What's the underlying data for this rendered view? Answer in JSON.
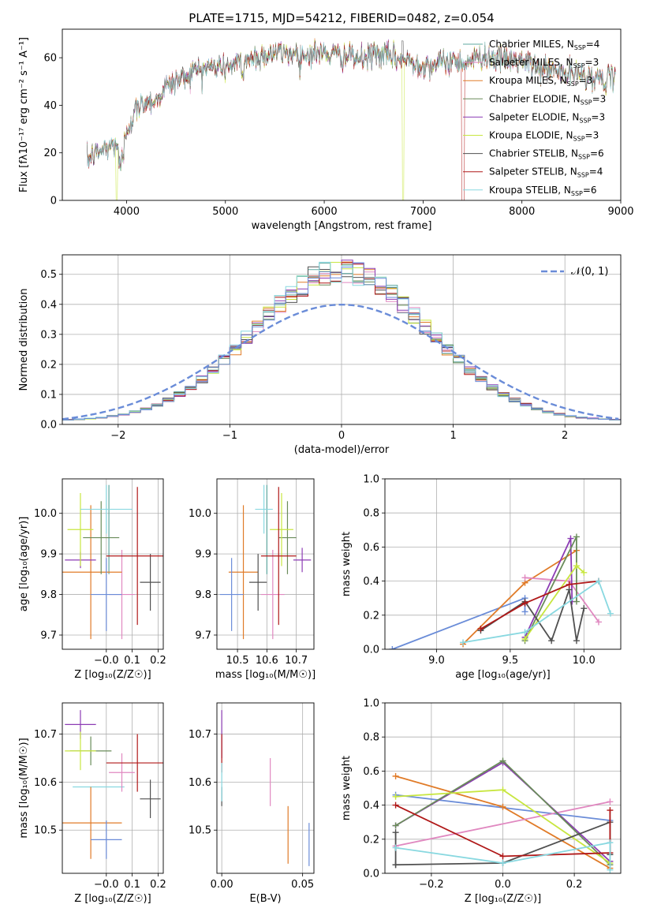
{
  "colors": {
    "chabrier_miles": "#5fa8a0",
    "salpeter_miles": "#e088c0",
    "kroupa_miles": "#e07b28",
    "chabrier_elodie": "#6a8c5a",
    "salpeter_elodie": "#8c3cb4",
    "kroupa_elodie": "#c8e640",
    "chabrier_stelib": "#505050",
    "salpeter_stelib": "#b01818",
    "kroupa_stelib": "#88d8e0",
    "gauss": "#6a8cd8",
    "blue": "#6a8cd8",
    "grid": "#b0b0b0"
  },
  "chart_data": [
    {
      "id": "spectrum",
      "type": "line",
      "title": "PLATE=1715, MJD=54212, FIBERID=0482, z=0.054",
      "xlabel": "wavelength [Angstrom, rest frame]",
      "ylabel": "Flux [fλ10⁻¹⁷ erg cm⁻² s⁻¹ A⁻¹]",
      "xlim": [
        3350,
        9000
      ],
      "ylim": [
        0,
        72
      ],
      "xticks": [
        "4000",
        "5000",
        "6000",
        "7000",
        "8000",
        "9000"
      ],
      "yticks": [
        "0",
        "20",
        "40",
        "60"
      ],
      "legend": "top-right",
      "series": [
        {
          "name": "Chabrier MILES, N",
          "sub": "SSP",
          "suffix": "=4"
        },
        {
          "name": "Salpeter MILES, N",
          "sub": "SSP",
          "suffix": "=3"
        },
        {
          "name": "Kroupa MILES, N",
          "sub": "SSP",
          "suffix": "=3"
        },
        {
          "name": "Chabrier ELODIE, N",
          "sub": "SSP",
          "suffix": "=3"
        },
        {
          "name": "Salpeter ELODIE, N",
          "sub": "SSP",
          "suffix": "=3"
        },
        {
          "name": "Kroupa ELODIE, N",
          "sub": "SSP",
          "suffix": "=3"
        },
        {
          "name": "Chabrier STELIB, N",
          "sub": "SSP",
          "suffix": "=6"
        },
        {
          "name": "Salpeter STELIB, N",
          "sub": "SSP",
          "suffix": "=4"
        },
        {
          "name": "Kroupa STELIB, N",
          "sub": "SSP",
          "suffix": "=6"
        }
      ],
      "continuum": [
        [
          3600,
          17
        ],
        [
          3700,
          20
        ],
        [
          3800,
          22
        ],
        [
          3900,
          24
        ],
        [
          3950,
          18
        ],
        [
          4000,
          30
        ],
        [
          4100,
          38
        ],
        [
          4200,
          42
        ],
        [
          4300,
          42
        ],
        [
          4400,
          48
        ],
        [
          4500,
          50
        ],
        [
          4600,
          52
        ],
        [
          4700,
          55
        ],
        [
          4800,
          56
        ],
        [
          4900,
          56
        ],
        [
          5000,
          56
        ],
        [
          5100,
          57
        ],
        [
          5200,
          59
        ],
        [
          5300,
          60
        ],
        [
          5400,
          61
        ],
        [
          5500,
          62
        ],
        [
          5600,
          62
        ],
        [
          5700,
          62
        ],
        [
          5800,
          61
        ],
        [
          5900,
          62
        ],
        [
          6000,
          62
        ],
        [
          6100,
          61
        ],
        [
          6200,
          61
        ],
        [
          6300,
          60
        ],
        [
          6400,
          59
        ],
        [
          6500,
          62
        ],
        [
          6600,
          61
        ],
        [
          6700,
          60
        ],
        [
          6800,
          59
        ],
        [
          6900,
          58
        ],
        [
          7000,
          57
        ],
        [
          7100,
          57
        ],
        [
          7200,
          58
        ],
        [
          7300,
          59
        ],
        [
          7400,
          58
        ],
        [
          7500,
          59
        ],
        [
          7600,
          61
        ],
        [
          7700,
          60
        ],
        [
          7800,
          59
        ],
        [
          7900,
          59
        ],
        [
          8000,
          58
        ],
        [
          8100,
          57
        ],
        [
          8200,
          55
        ],
        [
          8300,
          55
        ],
        [
          8400,
          54
        ],
        [
          8500,
          53
        ],
        [
          8600,
          53
        ],
        [
          8700,
          52
        ],
        [
          8800,
          51
        ],
        [
          8900,
          51
        ]
      ]
    },
    {
      "id": "residuals",
      "type": "histogram",
      "xlabel": "(data-model)/error",
      "ylabel": "Normed distribution",
      "xlim": [
        -2.5,
        2.5
      ],
      "ylim": [
        0,
        0.565
      ],
      "xticks": [
        "−2",
        "−1",
        "0",
        "1",
        "2"
      ],
      "yticks": [
        "0.0",
        "0.1",
        "0.2",
        "0.3",
        "0.4",
        "0.5"
      ],
      "legend_label": "𝒩(0, 1)",
      "bin_width": 0.1
    },
    {
      "id": "z_age",
      "type": "scatter",
      "xlabel": "Z [log₁₀(Z/Z☉)]",
      "ylabel": "age  [log₁₀(age/yr)]",
      "xlim": [
        -0.17,
        0.22
      ],
      "ylim": [
        9.665,
        10.085
      ],
      "xticks": [
        "−0.0",
        "0.1",
        "0.2"
      ],
      "yticks": [
        "9.7",
        "9.8",
        "9.9",
        "10.0"
      ],
      "points": [
        {
          "c": "chabrier_miles",
          "x": 0.01,
          "y": 9.96,
          "ex": 0.0,
          "ey": 0.11
        },
        {
          "c": "salpeter_miles",
          "x": 0.06,
          "y": 9.8,
          "ex": 0.05,
          "ey": 0.11
        },
        {
          "c": "kroupa_miles",
          "x": -0.06,
          "y": 9.855,
          "ex": 0.12,
          "ey": 0.165
        },
        {
          "c": "chabrier_elodie",
          "x": -0.02,
          "y": 9.94,
          "ex": 0.07,
          "ey": 0.09
        },
        {
          "c": "salpeter_elodie",
          "x": -0.1,
          "y": 9.885,
          "ex": 0.06,
          "ey": 0.02
        },
        {
          "c": "kroupa_elodie",
          "x": -0.1,
          "y": 9.96,
          "ex": 0.05,
          "ey": 0.09
        },
        {
          "c": "chabrier_stelib",
          "x": 0.17,
          "y": 9.83,
          "ex": 0.04,
          "ey": 0.07
        },
        {
          "c": "salpeter_stelib",
          "x": 0.12,
          "y": 9.895,
          "ex": 0.12,
          "ey": 0.17
        },
        {
          "c": "kroupa_stelib",
          "x": 0.0,
          "y": 10.01,
          "ex": 0.1,
          "ey": 0.06
        },
        {
          "c": "blue",
          "x": 0.0,
          "y": 9.8,
          "ex": 0.06,
          "ey": 0.09
        }
      ]
    },
    {
      "id": "mass_age",
      "type": "scatter",
      "xlabel": "mass [log₁₀(M/M☉)]",
      "ylabel": "",
      "xlim": [
        10.43,
        10.76
      ],
      "ylim": [
        9.665,
        10.085
      ],
      "xticks": [
        "10.5",
        "10.6",
        "10.7"
      ],
      "yticks": [
        "9.7",
        "9.8",
        "9.9",
        "10.0"
      ],
      "points": [
        {
          "c": "chabrier_miles",
          "x": 10.6,
          "y": 9.96,
          "ex": 0.0,
          "ey": 0.11
        },
        {
          "c": "salpeter_miles",
          "x": 10.62,
          "y": 9.8,
          "ex": 0.04,
          "ey": 0.11
        },
        {
          "c": "kroupa_miles",
          "x": 10.52,
          "y": 9.855,
          "ex": 0.05,
          "ey": 0.165
        },
        {
          "c": "chabrier_elodie",
          "x": 10.67,
          "y": 9.94,
          "ex": 0.03,
          "ey": 0.09
        },
        {
          "c": "salpeter_elodie",
          "x": 10.72,
          "y": 9.885,
          "ex": 0.03,
          "ey": 0.03
        },
        {
          "c": "kroupa_elodie",
          "x": 10.65,
          "y": 9.96,
          "ex": 0.04,
          "ey": 0.09
        },
        {
          "c": "chabrier_stelib",
          "x": 10.57,
          "y": 9.83,
          "ex": 0.03,
          "ey": 0.07
        },
        {
          "c": "salpeter_stelib",
          "x": 10.64,
          "y": 9.895,
          "ex": 0.06,
          "ey": 0.17
        },
        {
          "c": "kroupa_stelib",
          "x": 10.59,
          "y": 10.01,
          "ex": 0.03,
          "ey": 0.06
        },
        {
          "c": "blue",
          "x": 10.48,
          "y": 9.8,
          "ex": 0.04,
          "ey": 0.09
        }
      ]
    },
    {
      "id": "age_weight",
      "type": "line",
      "xlabel": "age  [log₁₀(age/yr)]",
      "ylabel": "mass weight",
      "xlim": [
        8.65,
        10.25
      ],
      "ylim": [
        0,
        1.0
      ],
      "xticks": [
        "9.0",
        "9.5",
        "10.0"
      ],
      "yticks": [
        "0.0",
        "0.2",
        "0.4",
        "0.6",
        "0.8",
        "1.0"
      ],
      "series": [
        {
          "c": "blue",
          "x": [
            8.7,
            9.6,
            9.6
          ],
          "y": [
            0.0,
            0.3,
            0.22
          ]
        },
        {
          "c": "kroupa_miles",
          "x": [
            9.18,
            9.6,
            9.95
          ],
          "y": [
            0.03,
            0.39,
            0.58
          ]
        },
        {
          "c": "salpeter_miles",
          "x": [
            9.6,
            9.9,
            10.1
          ],
          "y": [
            0.42,
            0.4,
            0.16
          ]
        },
        {
          "c": "salpeter_elodie",
          "x": [
            9.6,
            9.91,
            9.92
          ],
          "y": [
            0.07,
            0.65,
            0.28
          ]
        },
        {
          "c": "chabrier_elodie",
          "x": [
            9.6,
            9.95,
            9.95
          ],
          "y": [
            0.05,
            0.66,
            0.28
          ]
        },
        {
          "c": "kroupa_elodie",
          "x": [
            9.6,
            9.95,
            10.0
          ],
          "y": [
            0.06,
            0.49,
            0.45
          ]
        },
        {
          "c": "chabrier_stelib",
          "x": [
            9.3,
            9.6,
            9.78,
            9.9,
            9.95,
            10.0
          ],
          "y": [
            0.11,
            0.28,
            0.05,
            0.35,
            0.05,
            0.24
          ]
        },
        {
          "c": "salpeter_stelib",
          "x": [
            9.3,
            9.6,
            9.9,
            10.1
          ],
          "y": [
            0.12,
            0.27,
            0.38,
            0.4
          ]
        },
        {
          "c": "kroupa_stelib",
          "x": [
            9.18,
            9.6,
            10.1,
            10.18
          ],
          "y": [
            0.04,
            0.1,
            0.4,
            0.21
          ]
        }
      ]
    },
    {
      "id": "z_mass",
      "type": "scatter",
      "xlabel": "Z [log₁₀(Z/Z☉)]",
      "ylabel": "mass [log₁₀(M/M☉)]",
      "xlim": [
        -0.17,
        0.22
      ],
      "ylim": [
        10.41,
        10.765
      ],
      "xticks": [
        "−0.0",
        "0.1",
        "0.2"
      ],
      "yticks": [
        "10.5",
        "10.6",
        "10.7"
      ],
      "points": [
        {
          "c": "kroupa_stelib",
          "x": -0.03,
          "y": 10.59,
          "ex": 0.1,
          "ey": 0.0
        },
        {
          "c": "salpeter_miles",
          "x": 0.06,
          "y": 10.62,
          "ex": 0.05,
          "ey": 0.04
        },
        {
          "c": "kroupa_miles",
          "x": -0.06,
          "y": 10.515,
          "ex": 0.12,
          "ey": 0.075
        },
        {
          "c": "chabrier_elodie",
          "x": -0.06,
          "y": 10.665,
          "ex": 0.08,
          "ey": 0.03
        },
        {
          "c": "salpeter_elodie",
          "x": -0.1,
          "y": 10.72,
          "ex": 0.06,
          "ey": 0.03
        },
        {
          "c": "kroupa_elodie",
          "x": -0.1,
          "y": 10.665,
          "ex": 0.06,
          "ey": 0.04
        },
        {
          "c": "chabrier_stelib",
          "x": 0.17,
          "y": 10.565,
          "ex": 0.04,
          "ey": 0.04
        },
        {
          "c": "salpeter_stelib",
          "x": 0.12,
          "y": 10.64,
          "ex": 0.12,
          "ey": 0.06
        },
        {
          "c": "blue",
          "x": 0.0,
          "y": 10.48,
          "ex": 0.06,
          "ey": 0.04
        },
        {
          "c": "chabrier_miles",
          "x": 0.02,
          "y": 10.59,
          "ex": 0.0,
          "ey": 0.0
        }
      ]
    },
    {
      "id": "ebv_mass",
      "type": "scatter",
      "xlabel": "E(B-V)",
      "ylabel": "",
      "xlim": [
        -0.003,
        0.057
      ],
      "ylim": [
        10.41,
        10.765
      ],
      "xticks": [
        "0.00",
        "0.05"
      ],
      "yticks": [
        "10.5",
        "10.6",
        "10.7"
      ],
      "points": [
        {
          "c": "salpeter_elodie",
          "x": 0.0,
          "y": 10.7,
          "ex": 0.0,
          "ey": 0.05
        },
        {
          "c": "salpeter_stelib",
          "x": 0.0,
          "y": 10.66,
          "ex": 0.0,
          "ey": 0.04
        },
        {
          "c": "chabrier_stelib",
          "x": 0.0,
          "y": 10.57,
          "ex": 0.0,
          "ey": 0.02
        },
        {
          "c": "kroupa_stelib",
          "x": 0.0,
          "y": 10.6,
          "ex": 0.0,
          "ey": 0.04
        },
        {
          "c": "salpeter_miles",
          "x": 0.03,
          "y": 10.6,
          "ex": 0.0,
          "ey": 0.05
        },
        {
          "c": "kroupa_miles",
          "x": 0.041,
          "y": 10.49,
          "ex": 0.0,
          "ey": 0.06
        },
        {
          "c": "blue",
          "x": 0.054,
          "y": 10.47,
          "ex": 0.0,
          "ey": 0.045
        }
      ]
    },
    {
      "id": "z_weight",
      "type": "line",
      "xlabel": "Z [log₁₀(Z/Z☉)]",
      "ylabel": "mass weight",
      "xlim": [
        -0.33,
        0.33
      ],
      "ylim": [
        0,
        1.0
      ],
      "xticks": [
        "−0.2",
        "0.0",
        "0.2"
      ],
      "yticks": [
        "0.0",
        "0.2",
        "0.4",
        "0.6",
        "0.8",
        "1.0"
      ],
      "series": [
        {
          "c": "blue",
          "x": [
            -0.3,
            0.3
          ],
          "y": [
            0.46,
            0.31
          ]
        },
        {
          "c": "kroupa_miles",
          "x": [
            -0.3,
            0.0,
            0.3
          ],
          "y": [
            0.57,
            0.39,
            0.03
          ]
        },
        {
          "c": "salpeter_miles",
          "x": [
            -0.3,
            0.3
          ],
          "y": [
            0.16,
            0.42
          ]
        },
        {
          "c": "salpeter_elodie",
          "x": [
            -0.3,
            0.0,
            0.3
          ],
          "y": [
            0.28,
            0.65,
            0.07
          ]
        },
        {
          "c": "chabrier_elodie",
          "x": [
            -0.3,
            0.0,
            0.3
          ],
          "y": [
            0.28,
            0.66,
            0.05
          ]
        },
        {
          "c": "kroupa_elodie",
          "x": [
            -0.3,
            0.0,
            0.3
          ],
          "y": [
            0.45,
            0.49,
            0.06
          ]
        },
        {
          "c": "chabrier_stelib",
          "x": [
            -0.3,
            -0.3,
            -0.3,
            0.0,
            0.3,
            0.3
          ],
          "y": [
            0.24,
            0.05,
            0.05,
            0.06,
            0.3,
            0.11
          ]
        },
        {
          "c": "salpeter_stelib",
          "x": [
            -0.3,
            0.0,
            0.3,
            0.3
          ],
          "y": [
            0.4,
            0.1,
            0.12,
            0.37
          ]
        },
        {
          "c": "kroupa_stelib",
          "x": [
            -0.3,
            0.0,
            0.3,
            0.3
          ],
          "y": [
            0.15,
            0.06,
            0.18,
            0.02
          ]
        }
      ]
    }
  ]
}
